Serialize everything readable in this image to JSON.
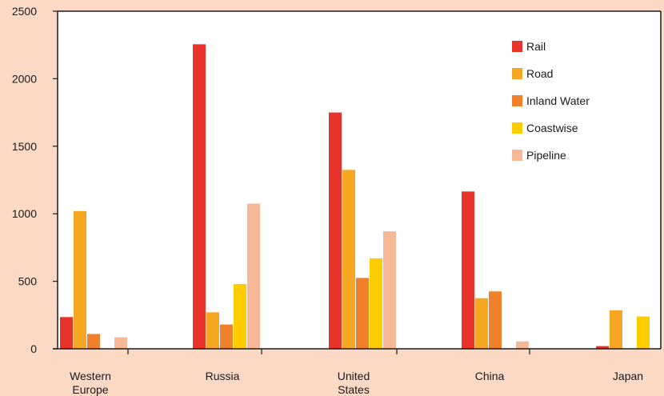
{
  "chart_data": {
    "type": "bar",
    "categories": [
      "Western Europe",
      "Russia",
      "United States",
      "China",
      "Japan"
    ],
    "category_lines": [
      [
        "Western",
        "Europe"
      ],
      [
        "Russia"
      ],
      [
        "United",
        "States"
      ],
      [
        "China"
      ],
      [
        "Japan"
      ]
    ],
    "series": [
      {
        "name": "Rail",
        "color": "#e8332a",
        "values": [
          235,
          2255,
          1750,
          1165,
          20
        ]
      },
      {
        "name": "Road",
        "color": "#f5a623",
        "values": [
          1020,
          270,
          1325,
          375,
          285
        ]
      },
      {
        "name": "Inland Water",
        "color": "#f0812a",
        "values": [
          110,
          180,
          525,
          425,
          null
        ]
      },
      {
        "name": "Coastwise",
        "color": "#ffcc00",
        "values": [
          null,
          480,
          670,
          null,
          240
        ]
      },
      {
        "name": "Pipeline",
        "color": "#f7b898",
        "values": [
          85,
          1075,
          870,
          55,
          null
        ]
      }
    ],
    "ylim": [
      0,
      2500
    ],
    "yticks": [
      0,
      500,
      1000,
      1500,
      2000,
      2500
    ],
    "legend_position": "top-right",
    "plot_background": "#ffffff",
    "page_background": "#fbd9c4",
    "grid": false
  }
}
